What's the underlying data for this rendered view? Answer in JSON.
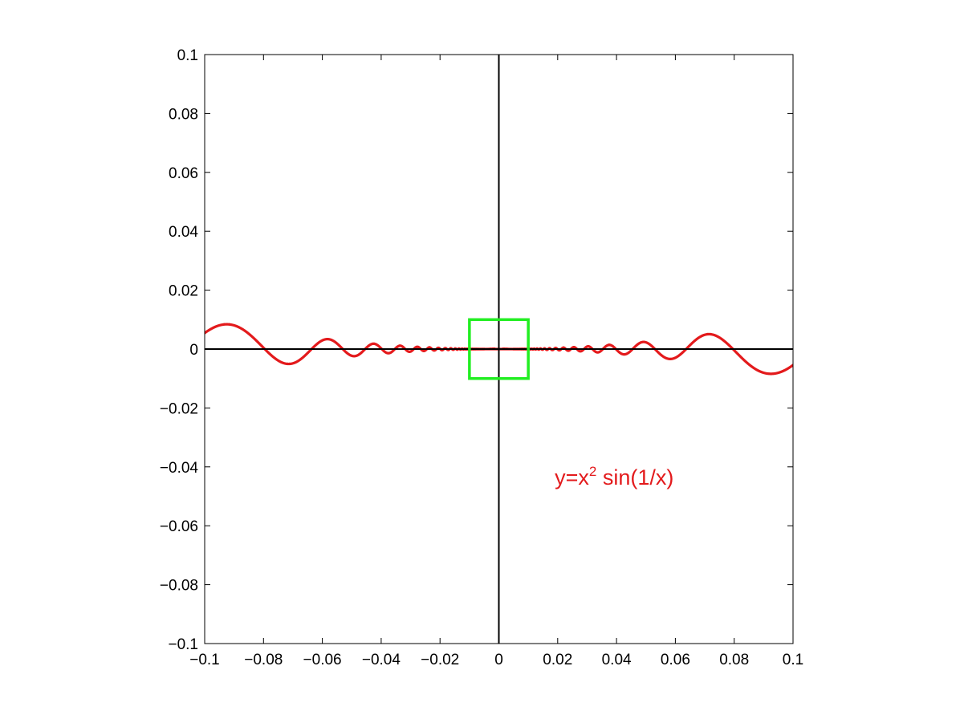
{
  "chart_data": {
    "type": "line",
    "title": "",
    "xlabel": "",
    "ylabel": "",
    "xlim": [
      -0.1,
      0.1
    ],
    "ylim": [
      -0.1,
      0.1
    ],
    "x_ticks": [
      -0.1,
      -0.08,
      -0.06,
      -0.04,
      -0.02,
      0,
      0.02,
      0.04,
      0.06,
      0.08,
      0.1
    ],
    "y_ticks": [
      -0.1,
      -0.08,
      -0.06,
      -0.04,
      -0.02,
      0,
      0.02,
      0.04,
      0.06,
      0.08,
      0.1
    ],
    "x_tick_labels": [
      "−0.1",
      "−0.08",
      "−0.06",
      "−0.04",
      "−0.02",
      "0",
      "0.02",
      "0.04",
      "0.06",
      "0.08",
      "0.1"
    ],
    "y_tick_labels": [
      "−0.1",
      "−0.08",
      "−0.06",
      "−0.04",
      "−0.02",
      "0",
      "0.02",
      "0.04",
      "0.06",
      "0.08",
      "0.1"
    ],
    "grid": false,
    "series": [
      {
        "function": "y = x^2 sin(1/x)",
        "color": "#e31a1c",
        "x_range": [
          -0.1,
          0.1
        ]
      }
    ],
    "axis_lines": {
      "x": 0,
      "y": 0,
      "color": "#000000"
    },
    "zoom_box": {
      "x": [
        -0.01,
        0.01
      ],
      "y": [
        -0.01,
        0.01
      ],
      "color": "#22ee22"
    },
    "annotation": {
      "prefix": "y=x",
      "superscript": "2",
      "suffix": " sin(1/x)",
      "x": 0.019,
      "y": -0.046,
      "color": "#e31a1c"
    }
  }
}
